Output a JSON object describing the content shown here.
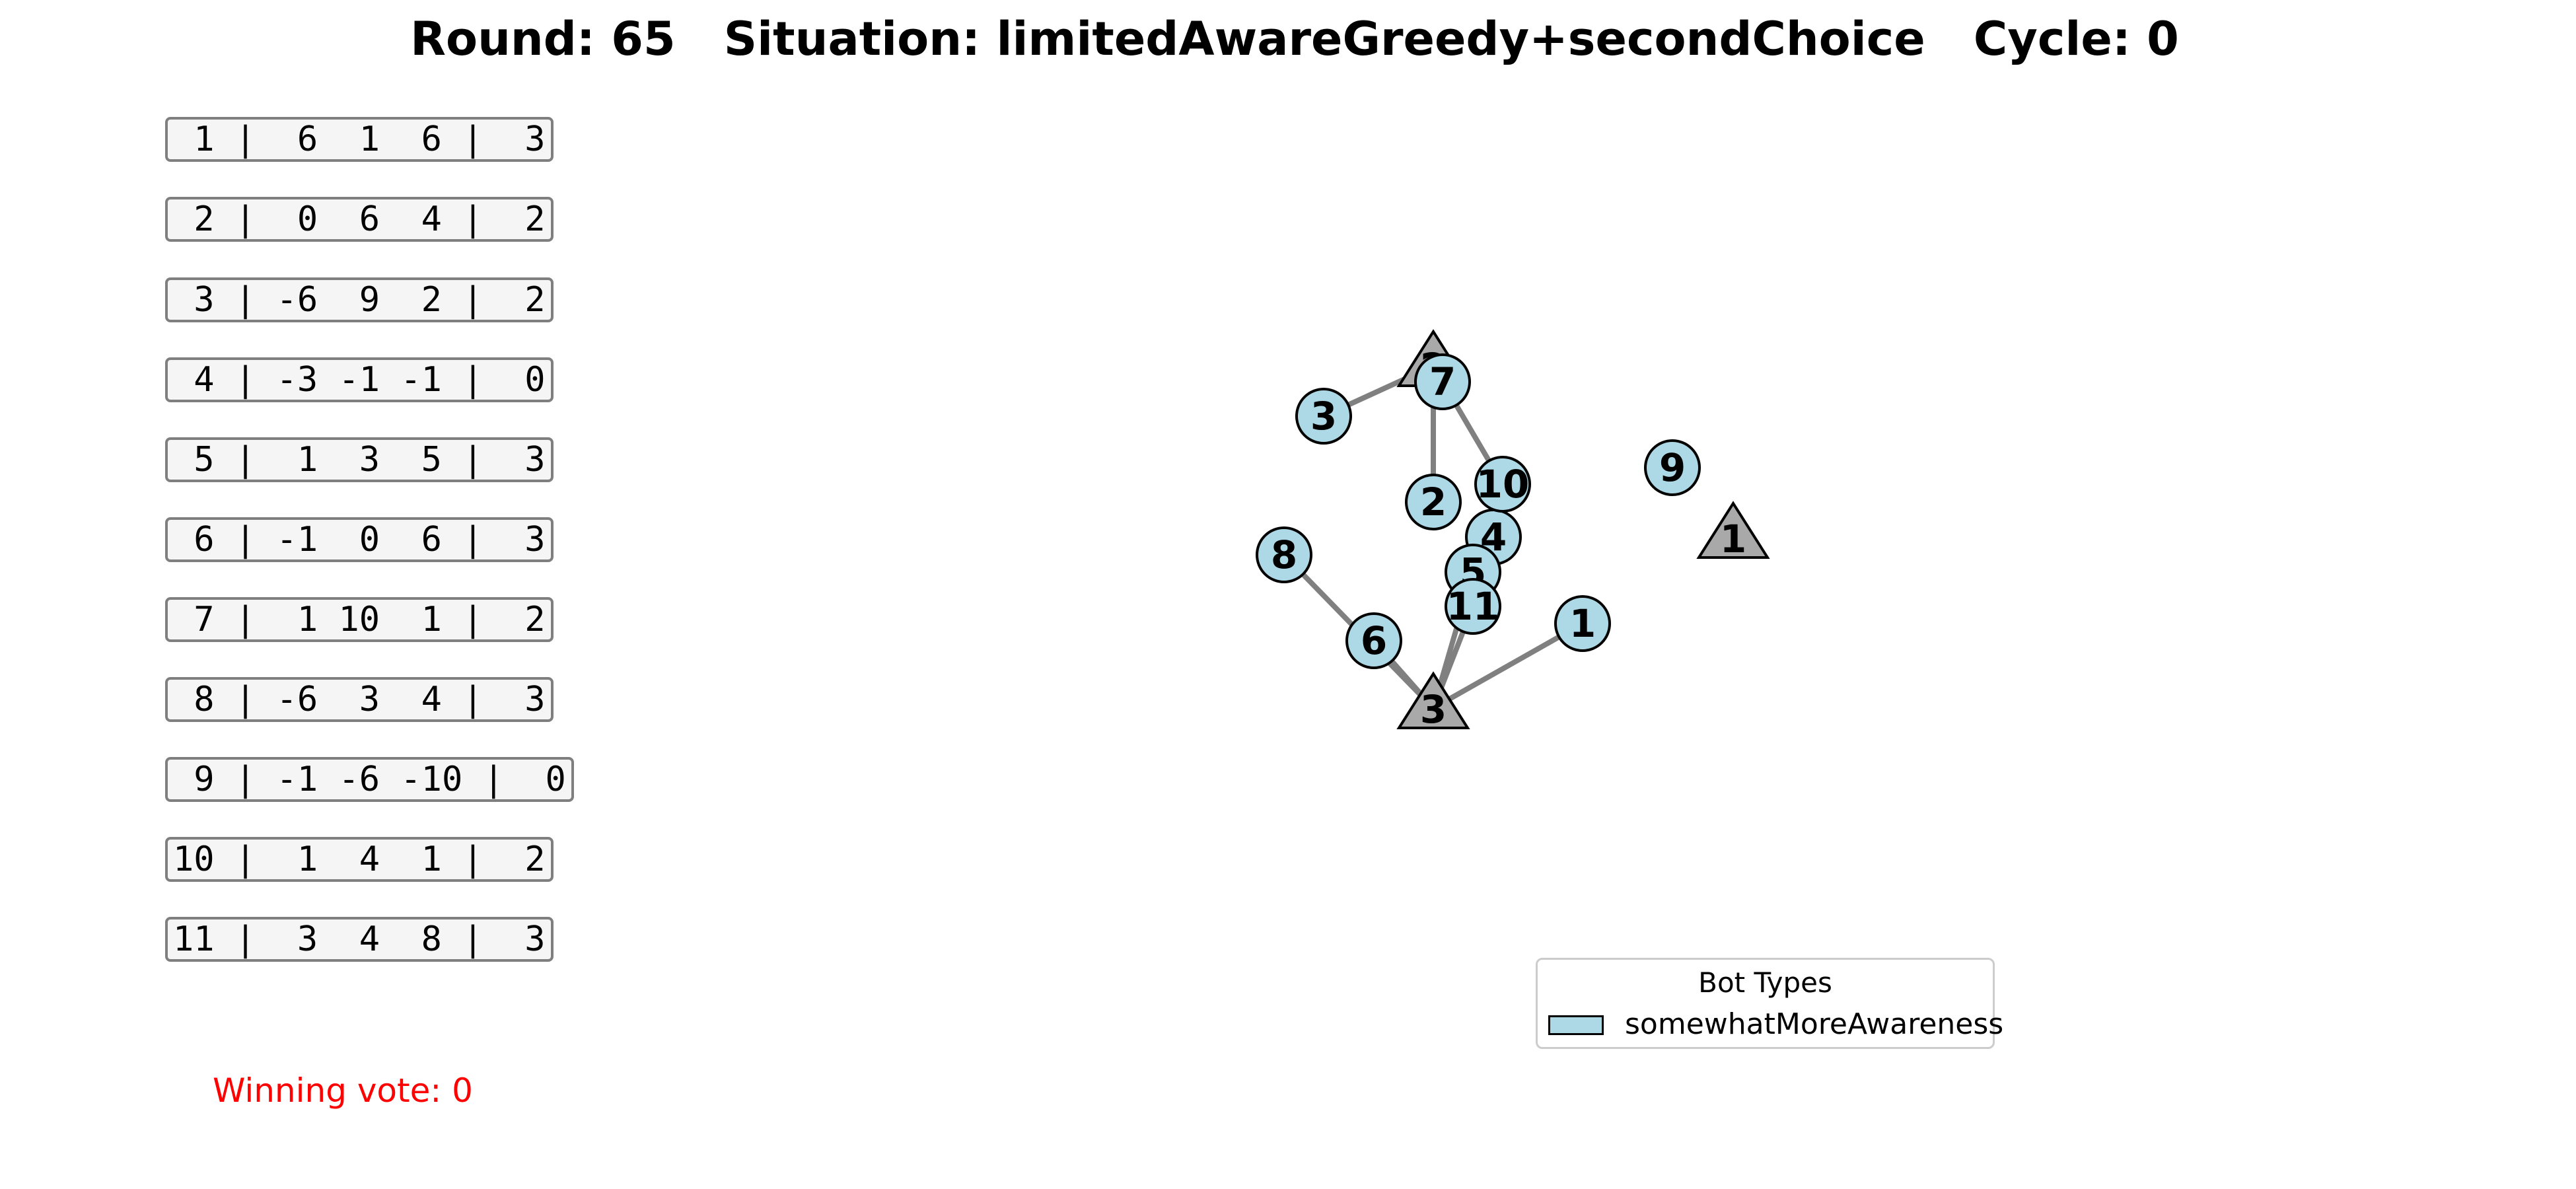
{
  "title": "Round: 65   Situation: limitedAwareGreedy+secondChoice   Cycle: 0",
  "bots": [
    " 1 |  6  1  6 |  3",
    " 2 |  0  6  4 |  2",
    " 3 | -6  9  2 |  2",
    " 4 | -3 -1 -1 |  0",
    " 5 |  1  3  5 |  3",
    " 6 | -1  0  6 |  3",
    " 7 |  1 10  1 |  2",
    " 8 | -6  3  4 |  3",
    " 9 | -1 -6 -10 |  0",
    "10 |  1  4  1 |  2",
    "11 |  3  4  8 |  3"
  ],
  "winning_vote": "Winning vote: 0",
  "legend": {
    "title": "Bot Types",
    "items": [
      {
        "label": "somewhatMoreAwareness",
        "color": "#add8e6"
      }
    ]
  },
  "colors": {
    "bot_node": "#add8e6",
    "option_node": "#a9a9a9",
    "edge": "#808080",
    "winning_text": "#ff0000"
  },
  "graph": {
    "options": [
      {
        "id": "1",
        "label": "1"
      },
      {
        "id": "2",
        "label": "2"
      },
      {
        "id": "3",
        "label": "3"
      }
    ],
    "bots": [
      {
        "id": "1",
        "label": "1",
        "target": "3"
      },
      {
        "id": "2",
        "label": "2",
        "target": "2"
      },
      {
        "id": "3",
        "label": "3",
        "target": "2"
      },
      {
        "id": "4",
        "label": "4",
        "target": null
      },
      {
        "id": "5",
        "label": "5",
        "target": "3"
      },
      {
        "id": "6",
        "label": "6",
        "target": "3"
      },
      {
        "id": "7",
        "label": "7",
        "target": "2"
      },
      {
        "id": "8",
        "label": "8",
        "target": "3"
      },
      {
        "id": "9",
        "label": "9",
        "target": null
      },
      {
        "id": "10",
        "label": "10",
        "target": "2"
      },
      {
        "id": "11",
        "label": "11",
        "target": "3"
      }
    ]
  }
}
